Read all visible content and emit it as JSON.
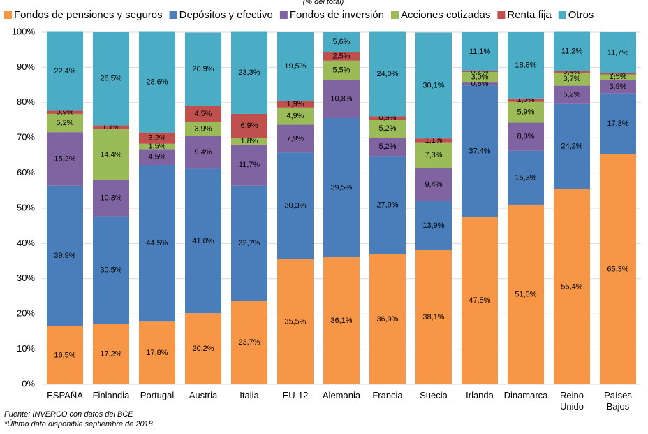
{
  "chart_data": {
    "type": "stacked_bar",
    "subtitle": "(% del total)",
    "categories": [
      "ESPAÑA",
      "Finlandia",
      "Portugal",
      "Austria",
      "Italia",
      "EU-12",
      "Alemania",
      "Francia",
      "Suecia",
      "Irlanda",
      "Dinamarca",
      "Reino Unido",
      "Países Bajos"
    ],
    "series": [
      {
        "name": "Fondos de pensiones y seguros",
        "color": "#f79646",
        "values": [
          16.5,
          17.2,
          17.8,
          20.2,
          23.7,
          35.5,
          36.1,
          36.9,
          38.1,
          47.5,
          51.0,
          55.4,
          65.3
        ],
        "value_labels": [
          "16,5%",
          "17,2%",
          "17,8%",
          "20,2%",
          "23,7%",
          "35,5%",
          "36,1%",
          "36,9%",
          "38,1%",
          "47,5%",
          "51,0%",
          "55,4%",
          "65,3%"
        ]
      },
      {
        "name": "Depósitos y efectivo",
        "color": "#4a7ebb",
        "values": [
          39.9,
          30.5,
          44.5,
          41.0,
          32.7,
          30.3,
          39.5,
          27.9,
          13.9,
          37.4,
          15.3,
          24.2,
          17.3
        ],
        "value_labels": [
          "39,9%",
          "30,5%",
          "44,5%",
          "41,0%",
          "32,7%",
          "30,3%",
          "39,5%",
          "27,9%",
          "13,9%",
          "37,4%",
          "15,3%",
          "24,2%",
          "17,3%"
        ]
      },
      {
        "name": "Fondos de inversión",
        "color": "#8064a2",
        "values": [
          15.2,
          10.3,
          4.5,
          9.4,
          11.7,
          7.9,
          10.8,
          5.2,
          9.4,
          0.8,
          8.0,
          5.2,
          3.9
        ],
        "value_labels": [
          "15,2%",
          "10,3%",
          "4,5%",
          "9,4%",
          "11,7%",
          "7,9%",
          "10,8%",
          "5,2%",
          "9,4%",
          "0,8%",
          "8,0%",
          "5,2%",
          "3,9%"
        ]
      },
      {
        "name": "Acciones cotizadas",
        "color": "#9bbb59",
        "values": [
          5.2,
          14.4,
          1.5,
          3.9,
          1.8,
          4.9,
          5.5,
          5.2,
          7.3,
          3.0,
          5.9,
          3.7,
          1.5
        ],
        "value_labels": [
          "5,2%",
          "14,4%",
          "1,5%",
          "3,9%",
          "1,8%",
          "4,9%",
          "5,5%",
          "5,2%",
          "7,3%",
          "3,0%",
          "5,9%",
          "3,7%",
          "1,5%"
        ]
      },
      {
        "name": "Renta fija",
        "color": "#c0504d",
        "values": [
          0.9,
          1.1,
          3.2,
          4.5,
          6.9,
          1.9,
          2.5,
          0.9,
          1.1,
          0.2,
          1.0,
          0.4,
          0.3
        ],
        "value_labels": [
          "0,9%",
          "1,1%",
          "3,2%",
          "4,5%",
          "6,9%",
          "1,9%",
          "2,5%",
          "0,9%",
          "1,1%",
          "0,2%",
          "1,0%",
          "0,4%",
          "0,3%"
        ]
      },
      {
        "name": "Otros",
        "color": "#4bacc6",
        "values": [
          22.4,
          26.5,
          28.6,
          20.9,
          23.3,
          19.5,
          5.6,
          24.0,
          30.1,
          11.1,
          18.8,
          11.2,
          11.7
        ],
        "value_labels": [
          "22,4%",
          "26,5%",
          "28,6%",
          "20,9%",
          "23,3%",
          "19,5%",
          "5,6%",
          "24,0%",
          "30,1%",
          "11,1%",
          "18,8%",
          "11,2%",
          "11,7%"
        ]
      }
    ],
    "ylim": [
      0,
      100
    ],
    "yticks": [
      {
        "value": 0,
        "label": "0%"
      },
      {
        "value": 10,
        "label": "10%"
      },
      {
        "value": 20,
        "label": "20%"
      },
      {
        "value": 30,
        "label": "30%"
      },
      {
        "value": 40,
        "label": "40%"
      },
      {
        "value": 50,
        "label": "50%"
      },
      {
        "value": 60,
        "label": "60%"
      },
      {
        "value": 70,
        "label": "70%"
      },
      {
        "value": 80,
        "label": "80%"
      },
      {
        "value": 90,
        "label": "90%"
      },
      {
        "value": 100,
        "label": "100%"
      }
    ],
    "grid": true,
    "notes": [
      "Fuente: INVERCO con datos del BCE",
      "*Último dato disponible septiembre de 2018"
    ]
  }
}
